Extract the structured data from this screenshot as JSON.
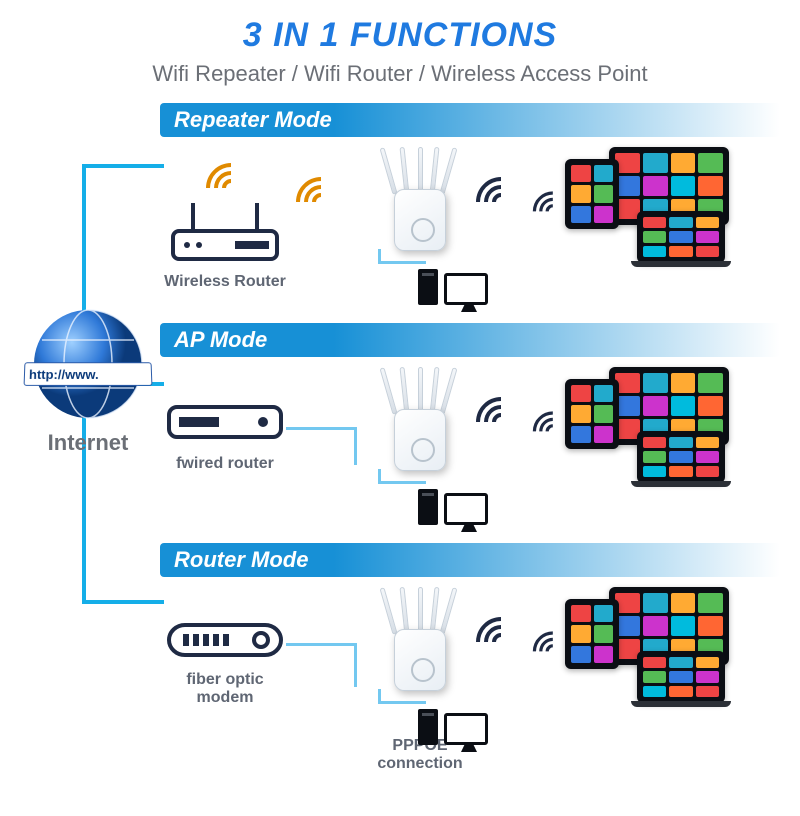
{
  "colors": {
    "accent_blue": "#1f7ae0",
    "cyan": "#15aee8",
    "dark_text": "#6b6f76",
    "wifi_main": "#1f2a44",
    "wifi_weak": "#e08a00"
  },
  "header": {
    "title": "3 IN 1 FUNCTIONS",
    "title_fontsize": 34,
    "title_color": "#1f7ae0",
    "subtitle": "Wifi Repeater / Wifi Router / Wireless Access Point",
    "subtitle_fontsize": 22,
    "subtitle_color": "#6b6f76"
  },
  "internet": {
    "label": "Internet",
    "label_fontsize": 22,
    "label_color": "#6b6f76",
    "url_text": "http://www.",
    "globe_color": "#1f6ad0"
  },
  "modes": [
    {
      "bar_label": "Repeater Mode",
      "source_caption": "Wireless Router",
      "wifi_colors": [
        "#e08a00",
        "#e08a00",
        "#1f2a44",
        "#1f2a44"
      ]
    },
    {
      "bar_label": "AP Mode",
      "source_caption": "fwired router",
      "wifi_colors": [
        "#1f2a44",
        "#1f2a44"
      ]
    },
    {
      "bar_label": "Router Mode",
      "source_caption": "fiber optic modem",
      "wifi_colors": [
        "#1f2a44",
        "#1f2a44"
      ],
      "bottom_caption": "PPPOE connection"
    }
  ],
  "mode_bar": {
    "fontsize": 22,
    "gradient_from": "#1790d6",
    "gradient_to": "rgba(23,144,214,0)"
  },
  "caption": {
    "fontsize": 16,
    "color": "#5f6673"
  },
  "tiles_palette": [
    "#e44",
    "#2ac",
    "#fa3",
    "#5b5",
    "#37d",
    "#c3c",
    "#0bd",
    "#f63"
  ]
}
